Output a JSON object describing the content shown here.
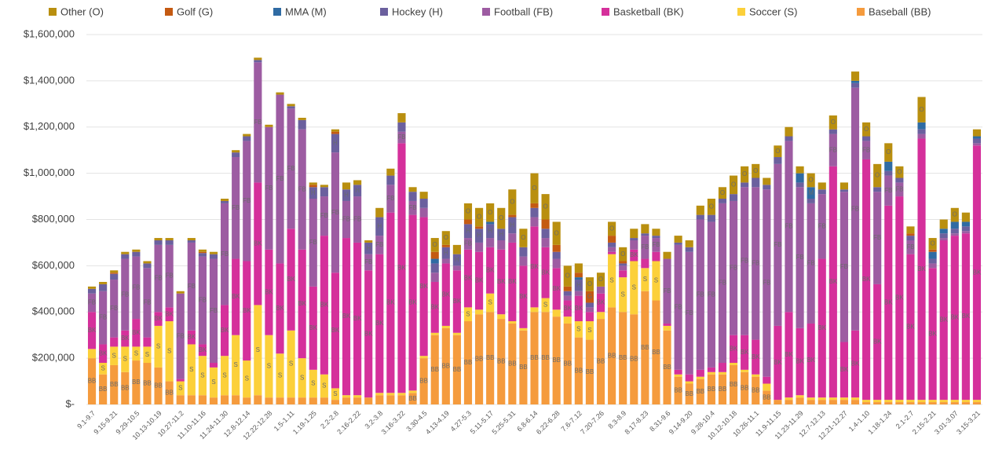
{
  "chart_data": {
    "type": "stacked_bar",
    "categories": [
      "9.1-9.7",
      null,
      "9.15-9.21",
      null,
      "9.29-10.5",
      null,
      "10.13-10.19",
      null,
      "10.27-11.2",
      null,
      "11.10-11.16",
      null,
      "11.24-11.30",
      null,
      "12.8-12.14",
      null,
      "12.22-12.28",
      null,
      "1.5-1.11",
      null,
      "1.19-1.25",
      null,
      "2.2-2.8",
      null,
      "2.16-2.22",
      null,
      "3.2-3.8",
      null,
      "3.16-3.22",
      null,
      "3.30-4.5",
      null,
      "4.13-4.19",
      null,
      "4.27-5.3",
      null,
      "5.11-5.17",
      null,
      "5.25-5.31",
      null,
      "6.8-6.14",
      null,
      "6.22-6.28",
      null,
      "7.6-7.12",
      null,
      "7.20-7.26",
      null,
      "8.3-8.9",
      null,
      "8.17-8.23",
      null,
      "8.31-9.6",
      null,
      "9.14-9.20",
      null,
      "9.28-10.4",
      null,
      "10.12-10.18",
      null,
      "10.26-11.1",
      null,
      "11.9-11.15",
      null,
      "11.23-11.29",
      null,
      "12.7-12.13",
      null,
      "12.21-12.27",
      null,
      "1.4-1.10",
      null,
      "1.18-1.24",
      null,
      "2.1-2.7",
      null,
      "2.15-2.21",
      null,
      "3.01-3.07",
      null,
      "3.15-3.21"
    ],
    "series": [
      {
        "name": "Baseball (BB)",
        "short": "BB",
        "color": "#f59b3d",
        "values": [
          200000,
          130000,
          170000,
          140000,
          190000,
          180000,
          160000,
          100000,
          40000,
          40000,
          40000,
          30000,
          40000,
          40000,
          30000,
          40000,
          30000,
          30000,
          30000,
          30000,
          30000,
          30000,
          20000,
          30000,
          30000,
          30000,
          40000,
          40000,
          40000,
          50000,
          200000,
          300000,
          330000,
          300000,
          360000,
          390000,
          400000,
          370000,
          350000,
          320000,
          400000,
          400000,
          380000,
          350000,
          290000,
          280000,
          370000,
          420000,
          400000,
          390000,
          490000,
          450000,
          320000,
          120000,
          90000,
          110000,
          130000,
          130000,
          170000,
          140000,
          120000,
          60000,
          20000,
          20000,
          30000,
          20000,
          20000,
          20000,
          20000,
          20000,
          10000,
          10000,
          10000,
          10000,
          10000,
          10000,
          10000,
          10000,
          10000,
          10000,
          10000
        ]
      },
      {
        "name": "Soccer (S)",
        "short": "S",
        "color": "#fcd03a",
        "values": [
          40000,
          50000,
          80000,
          110000,
          60000,
          70000,
          180000,
          260000,
          60000,
          220000,
          170000,
          130000,
          170000,
          260000,
          160000,
          390000,
          270000,
          190000,
          290000,
          170000,
          120000,
          100000,
          50000,
          10000,
          10000,
          0,
          10000,
          10000,
          10000,
          10000,
          10000,
          10000,
          10000,
          10000,
          60000,
          20000,
          80000,
          20000,
          10000,
          10000,
          20000,
          60000,
          30000,
          30000,
          70000,
          80000,
          30000,
          230000,
          150000,
          230000,
          100000,
          170000,
          20000,
          10000,
          10000,
          10000,
          10000,
          10000,
          10000,
          10000,
          10000,
          30000,
          0,
          10000,
          10000,
          10000,
          10000,
          10000,
          10000,
          10000,
          10000,
          10000,
          10000,
          10000,
          10000,
          10000,
          10000,
          10000,
          10000,
          10000,
          10000
        ]
      },
      {
        "name": "Basketball (BK)",
        "short": "BK",
        "color": "#d5309b",
        "values": [
          160000,
          80000,
          40000,
          70000,
          120000,
          40000,
          60000,
          60000,
          10000,
          60000,
          50000,
          20000,
          220000,
          330000,
          430000,
          530000,
          370000,
          390000,
          440000,
          470000,
          360000,
          600000,
          500000,
          680000,
          660000,
          550000,
          600000,
          780000,
          1080000,
          760000,
          600000,
          220000,
          270000,
          270000,
          250000,
          250000,
          200000,
          280000,
          340000,
          270000,
          350000,
          220000,
          180000,
          70000,
          110000,
          40000,
          80000,
          10000,
          30000,
          50000,
          40000,
          40000,
          10000,
          20000,
          30000,
          30000,
          20000,
          40000,
          120000,
          150000,
          150000,
          30000,
          320000,
          370000,
          290000,
          320000,
          600000,
          1000000,
          240000,
          290000,
          1040000,
          500000,
          840000,
          880000,
          630000,
          1130000,
          570000,
          690000,
          710000,
          720000,
          1100000
        ]
      },
      {
        "name": "Football (FB)",
        "short": "FB",
        "color": "#9d5ca2",
        "values": [
          80000,
          230000,
          250000,
          310000,
          270000,
          300000,
          290000,
          270000,
          370000,
          380000,
          380000,
          450000,
          440000,
          440000,
          520000,
          520000,
          530000,
          730000,
          520000,
          520000,
          380000,
          170000,
          520000,
          160000,
          200000,
          70000,
          80000,
          120000,
          50000,
          60000,
          40000,
          40000,
          20000,
          20000,
          50000,
          40000,
          40000,
          40000,
          40000,
          40000,
          40000,
          40000,
          40000,
          20000,
          20000,
          20000,
          30000,
          20000,
          20000,
          40000,
          100000,
          60000,
          280000,
          540000,
          530000,
          650000,
          630000,
          690000,
          580000,
          640000,
          660000,
          810000,
          700000,
          740000,
          610000,
          520000,
          280000,
          140000,
          650000,
          1050000,
          80000,
          400000,
          130000,
          60000,
          60000,
          20000,
          20000,
          10000,
          10000,
          10000,
          10000
        ]
      },
      {
        "name": "Hockey (H)",
        "short": "H",
        "color": "#6b609e",
        "values": [
          20000,
          30000,
          25000,
          20000,
          20000,
          20000,
          20000,
          20000,
          0,
          10000,
          15000,
          20000,
          10000,
          20000,
          20000,
          10000,
          0,
          0,
          10000,
          40000,
          50000,
          40000,
          80000,
          50000,
          50000,
          50000,
          80000,
          40000,
          40000,
          40000,
          40000,
          40000,
          50000,
          50000,
          60000,
          60000,
          60000,
          50000,
          70000,
          40000,
          40000,
          40000,
          30000,
          20000,
          50000,
          20000,
          0,
          20000,
          10000,
          10000,
          10000,
          10000,
          0,
          10000,
          20000,
          20000,
          30000,
          20000,
          30000,
          20000,
          40000,
          20000,
          30000,
          20000,
          20000,
          20000,
          20000,
          20000,
          10000,
          20000,
          20000,
          20000,
          20000,
          20000,
          20000,
          20000,
          20000,
          20000,
          20000,
          20000,
          20000
        ]
      },
      {
        "name": "MMA (M)",
        "short": "M",
        "color": "#2f6ba3",
        "values": [
          0,
          0,
          0,
          0,
          0,
          0,
          0,
          0,
          0,
          0,
          0,
          0,
          0,
          0,
          0,
          0,
          0,
          0,
          0,
          0,
          0,
          0,
          0,
          0,
          0,
          0,
          0,
          0,
          0,
          0,
          0,
          20000,
          0,
          0,
          0,
          0,
          10000,
          0,
          0,
          0,
          0,
          0,
          0,
          0,
          10000,
          0,
          0,
          0,
          0,
          0,
          0,
          0,
          0,
          0,
          0,
          0,
          0,
          0,
          0,
          0,
          0,
          0,
          0,
          0,
          40000,
          50000,
          0,
          0,
          0,
          10000,
          0,
          0,
          40000,
          0,
          0,
          30000,
          30000,
          20000,
          30000,
          20000,
          10000
        ]
      },
      {
        "name": "Golf (G)",
        "short": "G",
        "color": "#c45a12",
        "values": [
          0,
          0,
          5000,
          0,
          0,
          0,
          0,
          0,
          0,
          0,
          5000,
          0,
          0,
          0,
          0,
          0,
          0,
          0,
          0,
          0,
          10000,
          0,
          10000,
          0,
          0,
          0,
          0,
          0,
          0,
          0,
          0,
          30000,
          10000,
          0,
          20000,
          10000,
          0,
          0,
          10000,
          0,
          20000,
          40000,
          30000,
          20000,
          20000,
          50000,
          0,
          30000,
          10000,
          0,
          0,
          0,
          0,
          0,
          0,
          0,
          0,
          0,
          0,
          0,
          0,
          0,
          0,
          0,
          0,
          0,
          0,
          0,
          0,
          0,
          0,
          0,
          0,
          0,
          10000,
          0,
          10000,
          0,
          0,
          0,
          0
        ]
      },
      {
        "name": "Other (O)",
        "short": "O",
        "color": "#b98f0f",
        "values": [
          10000,
          10000,
          10000,
          10000,
          10000,
          10000,
          10000,
          10000,
          10000,
          10000,
          10000,
          10000,
          10000,
          10000,
          10000,
          10000,
          10000,
          10000,
          10000,
          10000,
          10000,
          10000,
          10000,
          30000,
          20000,
          10000,
          40000,
          30000,
          40000,
          20000,
          30000,
          60000,
          60000,
          40000,
          70000,
          80000,
          80000,
          90000,
          110000,
          80000,
          130000,
          110000,
          100000,
          90000,
          40000,
          60000,
          60000,
          60000,
          60000,
          40000,
          40000,
          30000,
          30000,
          30000,
          30000,
          40000,
          70000,
          50000,
          80000,
          70000,
          60000,
          30000,
          50000,
          40000,
          30000,
          60000,
          30000,
          60000,
          30000,
          40000,
          60000,
          100000,
          80000,
          50000,
          30000,
          110000,
          50000,
          40000,
          60000,
          40000,
          30000
        ]
      }
    ],
    "ylim": [
      0,
      1600000
    ],
    "yticks": [
      {
        "value": 0,
        "label": "$-"
      },
      {
        "value": 200000,
        "label": "$200,000"
      },
      {
        "value": 400000,
        "label": "$400,000"
      },
      {
        "value": 600000,
        "label": "$600,000"
      },
      {
        "value": 800000,
        "label": "$800,000"
      },
      {
        "value": 1000000,
        "label": "$1,000,000"
      },
      {
        "value": 1200000,
        "label": "$1,200,000"
      },
      {
        "value": 1400000,
        "label": "$1,400,000"
      },
      {
        "value": 1600000,
        "label": "$1,600,000"
      }
    ],
    "grid": true,
    "legend": "top"
  }
}
